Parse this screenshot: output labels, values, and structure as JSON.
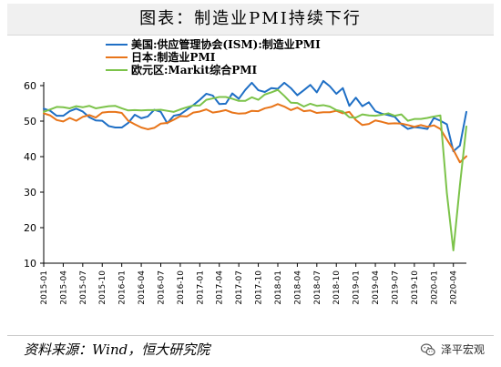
{
  "title": "图表：制造业PMI持续下行",
  "source": "资料来源：Wind，恒大研究院",
  "brand": "泽平宏观",
  "brand_icon": "wechat-icon",
  "chart_data": {
    "type": "line",
    "title": "图表：制造业PMI持续下行",
    "ylim": [
      10,
      60
    ],
    "yticks": [
      10,
      20,
      30,
      40,
      50,
      60
    ],
    "grid": false,
    "legend_position": "top-left",
    "x_start": "2015-01",
    "xticks": [
      "2015-01",
      "2015-04",
      "2015-07",
      "2015-10",
      "2016-01",
      "2016-04",
      "2016-07",
      "2016-10",
      "2017-01",
      "2017-04",
      "2017-07",
      "2017-10",
      "2018-01",
      "2018-04",
      "2018-07",
      "2018-10",
      "2019-01",
      "2019-04",
      "2019-07",
      "2019-10",
      "2020-01",
      "2020-04"
    ],
    "series": [
      {
        "name": "美国:供应管理协会(ISM):制造业PMI",
        "color": "#1f6fc5",
        "values": [
          53.5,
          52.9,
          51.5,
          51.5,
          52.8,
          53.5,
          52.7,
          51.1,
          50.2,
          50.1,
          48.6,
          48.2,
          48.2,
          49.5,
          51.8,
          50.8,
          51.3,
          53.2,
          52.6,
          49.4,
          51.5,
          51.9,
          53.2,
          54.5,
          56.0,
          57.7,
          57.2,
          54.8,
          54.9,
          57.8,
          56.3,
          58.8,
          60.8,
          58.7,
          58.2,
          59.3,
          59.1,
          60.8,
          59.3,
          57.3,
          58.7,
          60.2,
          58.1,
          61.3,
          59.8,
          57.7,
          59.3,
          54.3,
          56.6,
          54.2,
          55.3,
          52.8,
          52.1,
          51.7,
          51.2,
          49.1,
          47.8,
          48.3,
          48.1,
          47.8,
          50.9,
          50.1,
          49.1,
          41.5,
          43.1,
          52.6
        ],
        "last_values": [
          52.6
        ]
      },
      {
        "name": "日本:制造业PMI",
        "color": "#e8751a",
        "values": [
          52.2,
          51.6,
          50.3,
          49.9,
          50.9,
          50.1,
          51.2,
          51.7,
          51.0,
          52.4,
          52.6,
          52.6,
          52.3,
          50.1,
          49.1,
          48.2,
          47.7,
          48.1,
          49.3,
          49.5,
          50.4,
          51.4,
          51.3,
          52.4,
          52.7,
          53.3,
          52.4,
          52.7,
          53.1,
          52.4,
          52.1,
          52.2,
          52.9,
          52.8,
          53.6,
          54.0,
          54.8,
          54.1,
          53.1,
          53.8,
          52.8,
          53.0,
          52.3,
          52.5,
          52.5,
          52.9,
          52.2,
          52.6,
          50.3,
          48.9,
          49.2,
          50.2,
          49.8,
          49.3,
          49.4,
          49.3,
          48.9,
          48.4,
          48.9,
          48.4,
          48.8,
          47.8,
          44.8,
          41.9,
          38.4,
          40.1
        ],
        "last_values": [
          40.1
        ]
      },
      {
        "name": "欧元区:Markit综合PMI",
        "color": "#7cc34a",
        "values": [
          52.6,
          53.3,
          54.0,
          53.9,
          53.6,
          54.2,
          53.9,
          54.3,
          53.6,
          53.9,
          54.2,
          54.3,
          53.6,
          53.0,
          53.1,
          53.0,
          53.1,
          53.1,
          53.2,
          52.9,
          52.6,
          53.3,
          53.9,
          54.4,
          54.4,
          56.0,
          56.4,
          56.8,
          56.8,
          56.3,
          55.7,
          55.7,
          56.7,
          56.0,
          57.5,
          58.1,
          58.8,
          57.1,
          55.2,
          55.1,
          54.1,
          54.9,
          54.3,
          54.5,
          54.1,
          53.1,
          52.7,
          51.1,
          51.0,
          51.9,
          51.6,
          51.5,
          51.8,
          52.2,
          51.5,
          51.9,
          50.1,
          50.6,
          50.6,
          50.9,
          51.3,
          51.6,
          29.7,
          13.6,
          31.9,
          48.5
        ],
        "last_values": [
          48.5
        ]
      }
    ]
  }
}
